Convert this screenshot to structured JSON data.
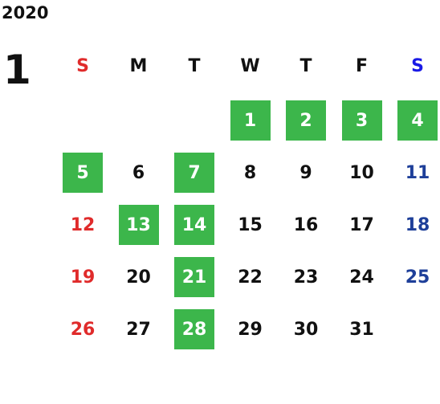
{
  "year": "2020",
  "month": "1",
  "weekdays": [
    "S",
    "M",
    "T",
    "W",
    "T",
    "F",
    "S"
  ],
  "weeks": [
    [
      null,
      null,
      null,
      {
        "day": "1",
        "highlighted": true
      },
      {
        "day": "2",
        "highlighted": true
      },
      {
        "day": "3",
        "highlighted": true
      },
      {
        "day": "4",
        "highlighted": true
      }
    ],
    [
      {
        "day": "5",
        "highlighted": true
      },
      {
        "day": "6",
        "highlighted": false
      },
      {
        "day": "7",
        "highlighted": true
      },
      {
        "day": "8",
        "highlighted": false
      },
      {
        "day": "9",
        "highlighted": false
      },
      {
        "day": "10",
        "highlighted": false
      },
      {
        "day": "11",
        "highlighted": false
      }
    ],
    [
      {
        "day": "12",
        "highlighted": false
      },
      {
        "day": "13",
        "highlighted": true
      },
      {
        "day": "14",
        "highlighted": true
      },
      {
        "day": "15",
        "highlighted": false
      },
      {
        "day": "16",
        "highlighted": false
      },
      {
        "day": "17",
        "highlighted": false
      },
      {
        "day": "18",
        "highlighted": false
      }
    ],
    [
      {
        "day": "19",
        "highlighted": false
      },
      {
        "day": "20",
        "highlighted": false
      },
      {
        "day": "21",
        "highlighted": true
      },
      {
        "day": "22",
        "highlighted": false
      },
      {
        "day": "23",
        "highlighted": false
      },
      {
        "day": "24",
        "highlighted": false
      },
      {
        "day": "25",
        "highlighted": false
      }
    ],
    [
      {
        "day": "26",
        "highlighted": false
      },
      {
        "day": "27",
        "highlighted": false
      },
      {
        "day": "28",
        "highlighted": true
      },
      {
        "day": "29",
        "highlighted": false
      },
      {
        "day": "30",
        "highlighted": false
      },
      {
        "day": "31",
        "highlighted": false
      },
      null
    ]
  ]
}
